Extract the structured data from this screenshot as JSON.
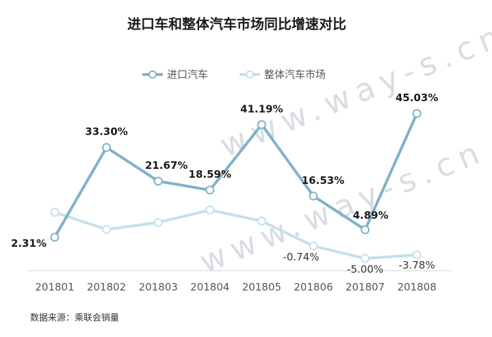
{
  "chart_data": {
    "type": "line",
    "title": "进口车和整体汽车市场同比增速对比",
    "categories": [
      "201801",
      "201802",
      "201803",
      "201804",
      "201805",
      "201806",
      "201807",
      "201808"
    ],
    "series": [
      {
        "name": "进口汽车",
        "color": "#7fb2c9",
        "values": [
          2.31,
          33.3,
          21.67,
          18.59,
          41.19,
          16.53,
          4.89,
          45.03
        ],
        "labels": [
          "2.31%",
          "33.30%",
          "21.67%",
          "18.59%",
          "41.19%",
          "16.53%",
          "4.89%",
          "45.03%"
        ]
      },
      {
        "name": "整体汽车市场",
        "color": "#c5e0ea",
        "values": [
          10.9,
          5.0,
          7.4,
          11.7,
          7.9,
          -0.74,
          -5.0,
          -3.78
        ],
        "labels": [
          "",
          "",
          "",
          "",
          "",
          "-0.74%",
          "-5.00%",
          "-3.78%"
        ]
      }
    ],
    "ylim": [
      -8,
      48
    ],
    "legend": "top-center",
    "grid": false
  },
  "watermark": "www.way-s.cn",
  "source": "数据来源：乘联会销量"
}
